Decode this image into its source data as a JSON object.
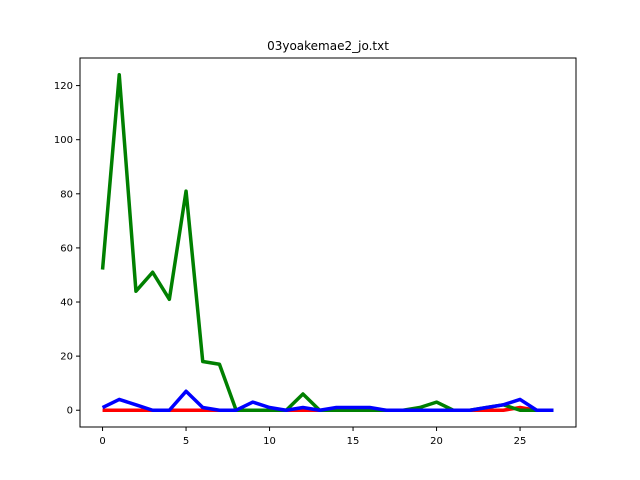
{
  "chart_data": {
    "type": "line",
    "title": "03yoakemae2_jo.txt",
    "xlabel": "",
    "ylabel": "",
    "xlim": [
      -1.35,
      28.35
    ],
    "ylim": [
      -6.2,
      130.2
    ],
    "x_ticks": [
      0,
      5,
      10,
      15,
      20,
      25
    ],
    "y_ticks": [
      0,
      20,
      40,
      60,
      80,
      100,
      120
    ],
    "grid": false,
    "legend": "none",
    "x": [
      0,
      1,
      2,
      3,
      4,
      5,
      6,
      7,
      8,
      9,
      10,
      11,
      12,
      13,
      14,
      15,
      16,
      17,
      18,
      19,
      20,
      21,
      22,
      23,
      24,
      25,
      26,
      27
    ],
    "series": [
      {
        "color": "#ff0000",
        "values": [
          0,
          0,
          0,
          0,
          0,
          0,
          0,
          0,
          0,
          0,
          0,
          0,
          0,
          0,
          0,
          0,
          0,
          0,
          0,
          0,
          0,
          0,
          0,
          0,
          0,
          1,
          0,
          0
        ]
      },
      {
        "color": "#008000",
        "values": [
          52,
          124,
          44,
          51,
          41,
          81,
          18,
          17,
          0,
          0,
          0,
          0,
          6,
          0,
          0,
          0,
          0,
          0,
          0,
          1,
          3,
          0,
          0,
          1,
          2,
          0,
          0,
          0
        ]
      },
      {
        "color": "#0000ff",
        "values": [
          1,
          4,
          2,
          0,
          0,
          7,
          1,
          0,
          0,
          3,
          1,
          0,
          1,
          0,
          1,
          1,
          1,
          0,
          0,
          0,
          0,
          0,
          0,
          1,
          2,
          4,
          0,
          0
        ]
      }
    ]
  }
}
